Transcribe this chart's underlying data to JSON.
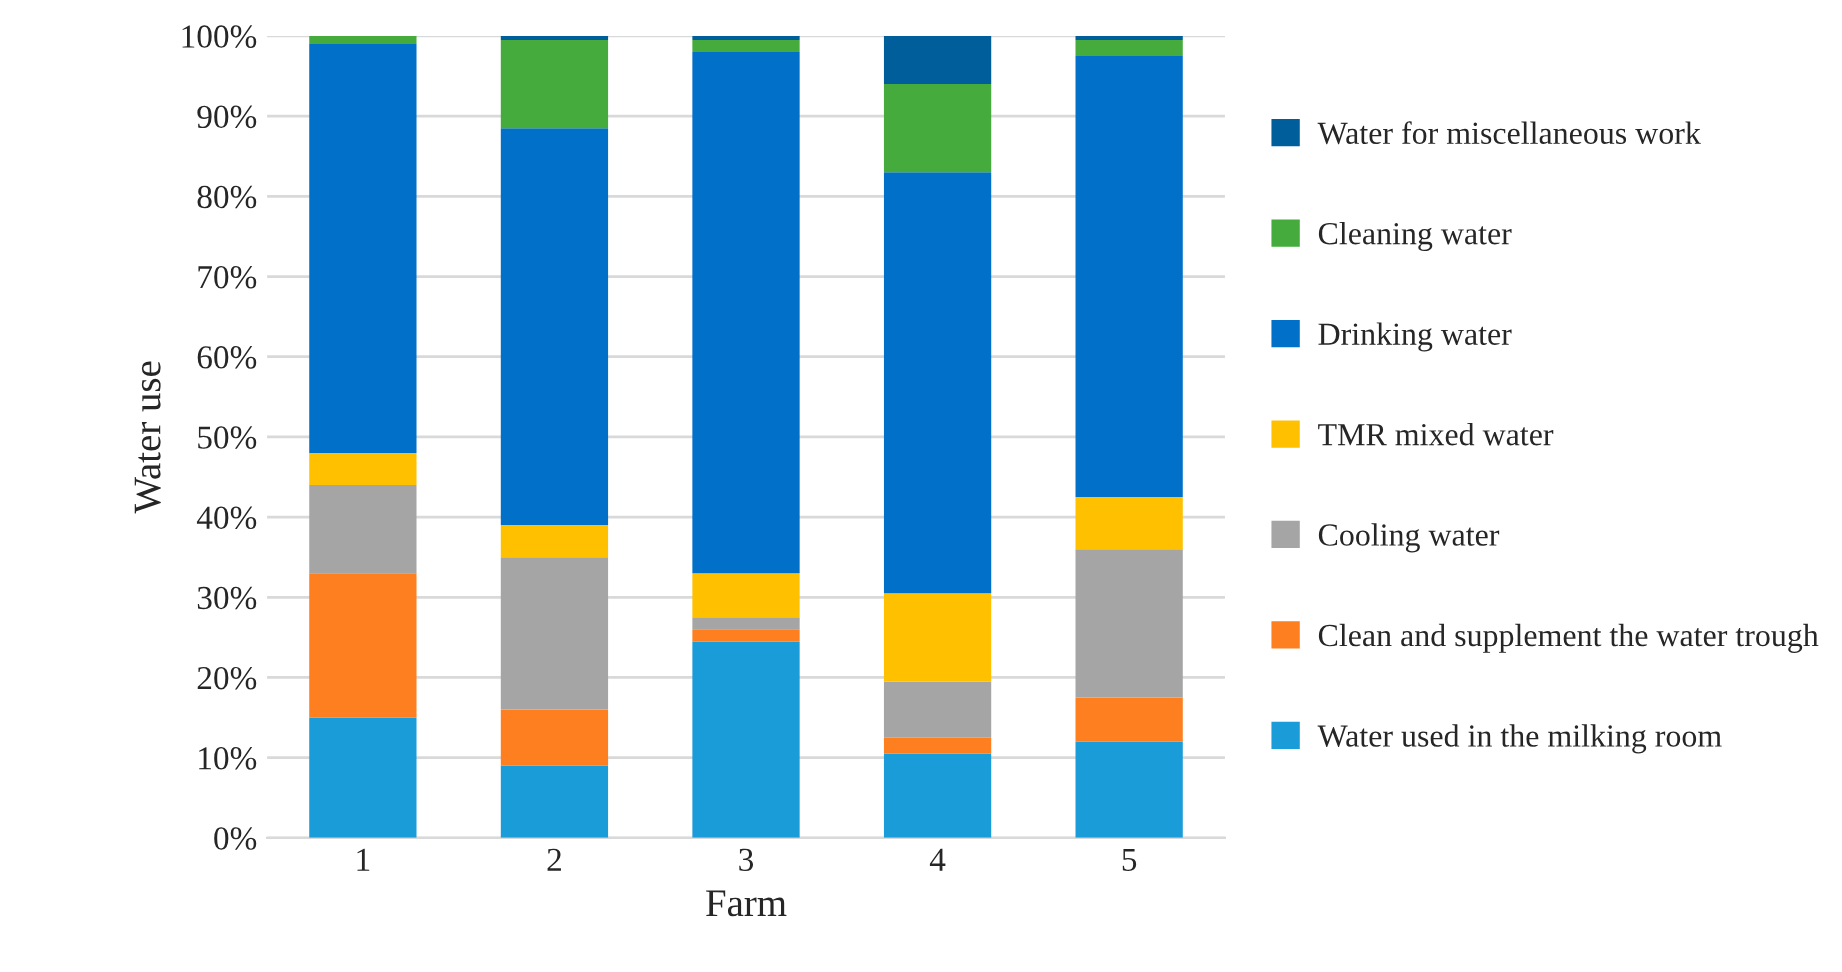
{
  "chart_data": {
    "type": "bar",
    "stacked": true,
    "xlabel": "Farm",
    "ylabel": "Water use",
    "categories": [
      "1",
      "2",
      "3",
      "4",
      "5"
    ],
    "series": [
      {
        "name": "Water used in the milking room",
        "color": "#1a9cd8",
        "values": [
          15,
          9,
          24.5,
          10.5,
          12
        ]
      },
      {
        "name": "Clean and supplement the water trough",
        "color": "#fd7f20",
        "values": [
          18,
          7,
          1.5,
          2,
          5.5
        ]
      },
      {
        "name": "Cooling water",
        "color": "#a5a5a5",
        "values": [
          11,
          19,
          1.5,
          7,
          18.5
        ]
      },
      {
        "name": "TMR mixed water",
        "color": "#ffc000",
        "values": [
          4,
          4,
          5.5,
          11,
          6.5
        ]
      },
      {
        "name": "Drinking water",
        "color": "#0070c8",
        "values": [
          51,
          49.5,
          65,
          52.5,
          55
        ]
      },
      {
        "name": "Cleaning water",
        "color": "#44ab3c",
        "values": [
          1,
          11,
          1.5,
          11,
          2
        ]
      },
      {
        "name": "Water for miscellaneous work",
        "color": "#005f9a",
        "values": [
          null,
          0.5,
          0.5,
          6,
          0.5
        ]
      }
    ],
    "ylim": [
      0,
      100
    ],
    "yticks": [
      {
        "value": 0,
        "label": "0%"
      },
      {
        "value": 10,
        "label": "10%"
      },
      {
        "value": 20,
        "label": "20%"
      },
      {
        "value": 30,
        "label": "30%"
      },
      {
        "value": 40,
        "label": "40%"
      },
      {
        "value": 50,
        "label": "50%"
      },
      {
        "value": 60,
        "label": "60%"
      },
      {
        "value": 70,
        "label": "70%"
      },
      {
        "value": 80,
        "label": "80%"
      },
      {
        "value": 90,
        "label": "90%"
      },
      {
        "value": 100,
        "label": "100%"
      }
    ],
    "grid": "y",
    "legend": "right"
  }
}
